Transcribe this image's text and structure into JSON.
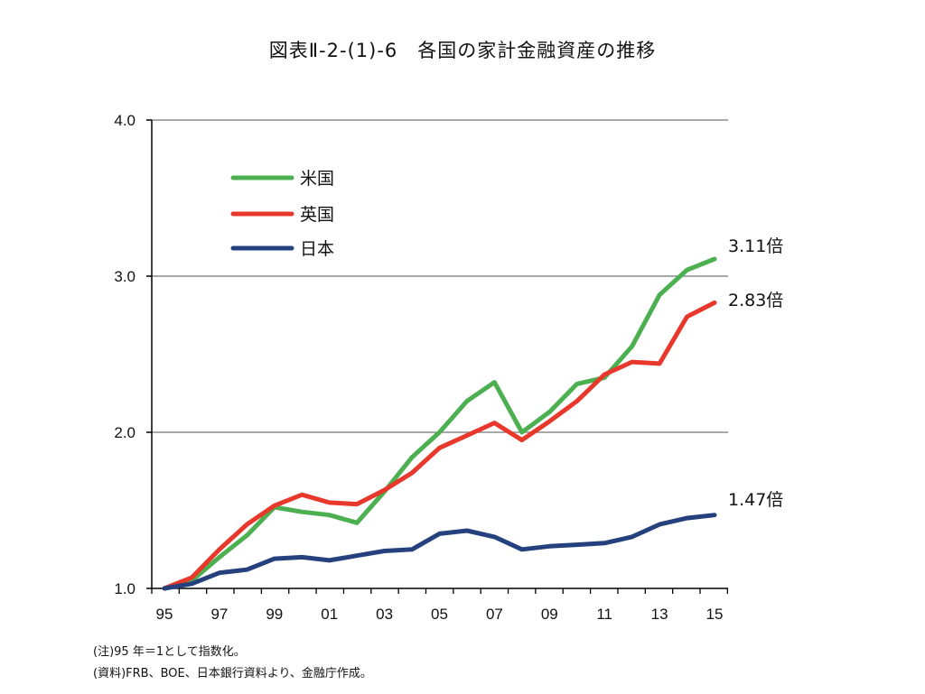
{
  "title": "図表Ⅱ-2-(1)-6　各国の家計金融資産の推移",
  "notes": {
    "note1": "(注)95 年＝1として指数化。",
    "note2": "(資料)FRB、BOE、日本銀行資料より、金融庁作成。"
  },
  "chart_data": {
    "type": "line",
    "x": [
      1995,
      1996,
      1997,
      1998,
      1999,
      2000,
      2001,
      2002,
      2003,
      2004,
      2005,
      2006,
      2007,
      2008,
      2009,
      2010,
      2011,
      2012,
      2013,
      2014,
      2015
    ],
    "xtick_labels": [
      "95",
      "97",
      "99",
      "01",
      "03",
      "05",
      "07",
      "09",
      "11",
      "13",
      "15"
    ],
    "ytick_labels": [
      "1.0",
      "2.0",
      "3.0",
      "4.0"
    ],
    "ylim": [
      1.0,
      4.0
    ],
    "yticks": [
      1.0,
      2.0,
      3.0,
      4.0
    ],
    "grid": true,
    "legend_position": "top-left",
    "series": [
      {
        "name": "米国",
        "color": "#4caf50",
        "values": [
          1.0,
          1.05,
          1.2,
          1.34,
          1.52,
          1.49,
          1.47,
          1.42,
          1.62,
          1.84,
          2.0,
          2.2,
          2.32,
          2.0,
          2.13,
          2.31,
          2.35,
          2.55,
          2.88,
          3.04,
          3.11
        ],
        "end_label": "3.11倍"
      },
      {
        "name": "英国",
        "color": "#e8382c",
        "values": [
          1.0,
          1.07,
          1.25,
          1.41,
          1.53,
          1.6,
          1.55,
          1.54,
          1.63,
          1.74,
          1.9,
          1.98,
          2.06,
          1.95,
          2.07,
          2.2,
          2.37,
          2.45,
          2.44,
          2.74,
          2.83
        ],
        "end_label": "2.83倍"
      },
      {
        "name": "日本",
        "color": "#24417e",
        "values": [
          1.0,
          1.03,
          1.1,
          1.12,
          1.19,
          1.2,
          1.18,
          1.21,
          1.24,
          1.25,
          1.35,
          1.37,
          1.33,
          1.25,
          1.27,
          1.28,
          1.29,
          1.33,
          1.41,
          1.45,
          1.47
        ],
        "end_label": "1.47倍"
      }
    ]
  }
}
